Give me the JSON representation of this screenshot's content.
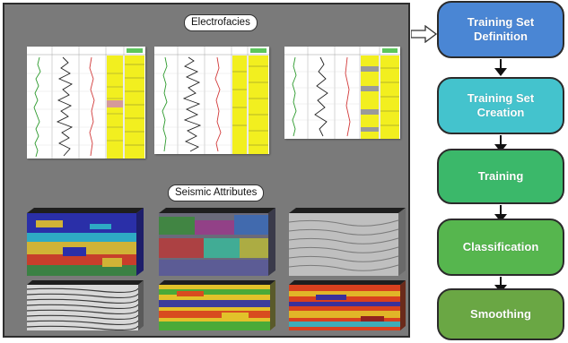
{
  "left_panel": {
    "electrofacies_label": "Electrofacies",
    "seismic_label": "Seismic Attributes"
  },
  "workflow": {
    "steps": [
      {
        "label": "Training Set\nDefinition",
        "color": "#4a86d4"
      },
      {
        "label": "Training Set\nCreation",
        "color": "#44c3cd"
      },
      {
        "label": "Training",
        "color": "#3bb86a"
      },
      {
        "label": "Classification",
        "color": "#56b64e"
      },
      {
        "label": "Smoothing",
        "color": "#6aa744"
      }
    ]
  },
  "colors": {
    "panel_bg": "#7a7a7a",
    "facies_yellow": "#f2ef1f",
    "seismic_blue": "#2a2fa8"
  }
}
